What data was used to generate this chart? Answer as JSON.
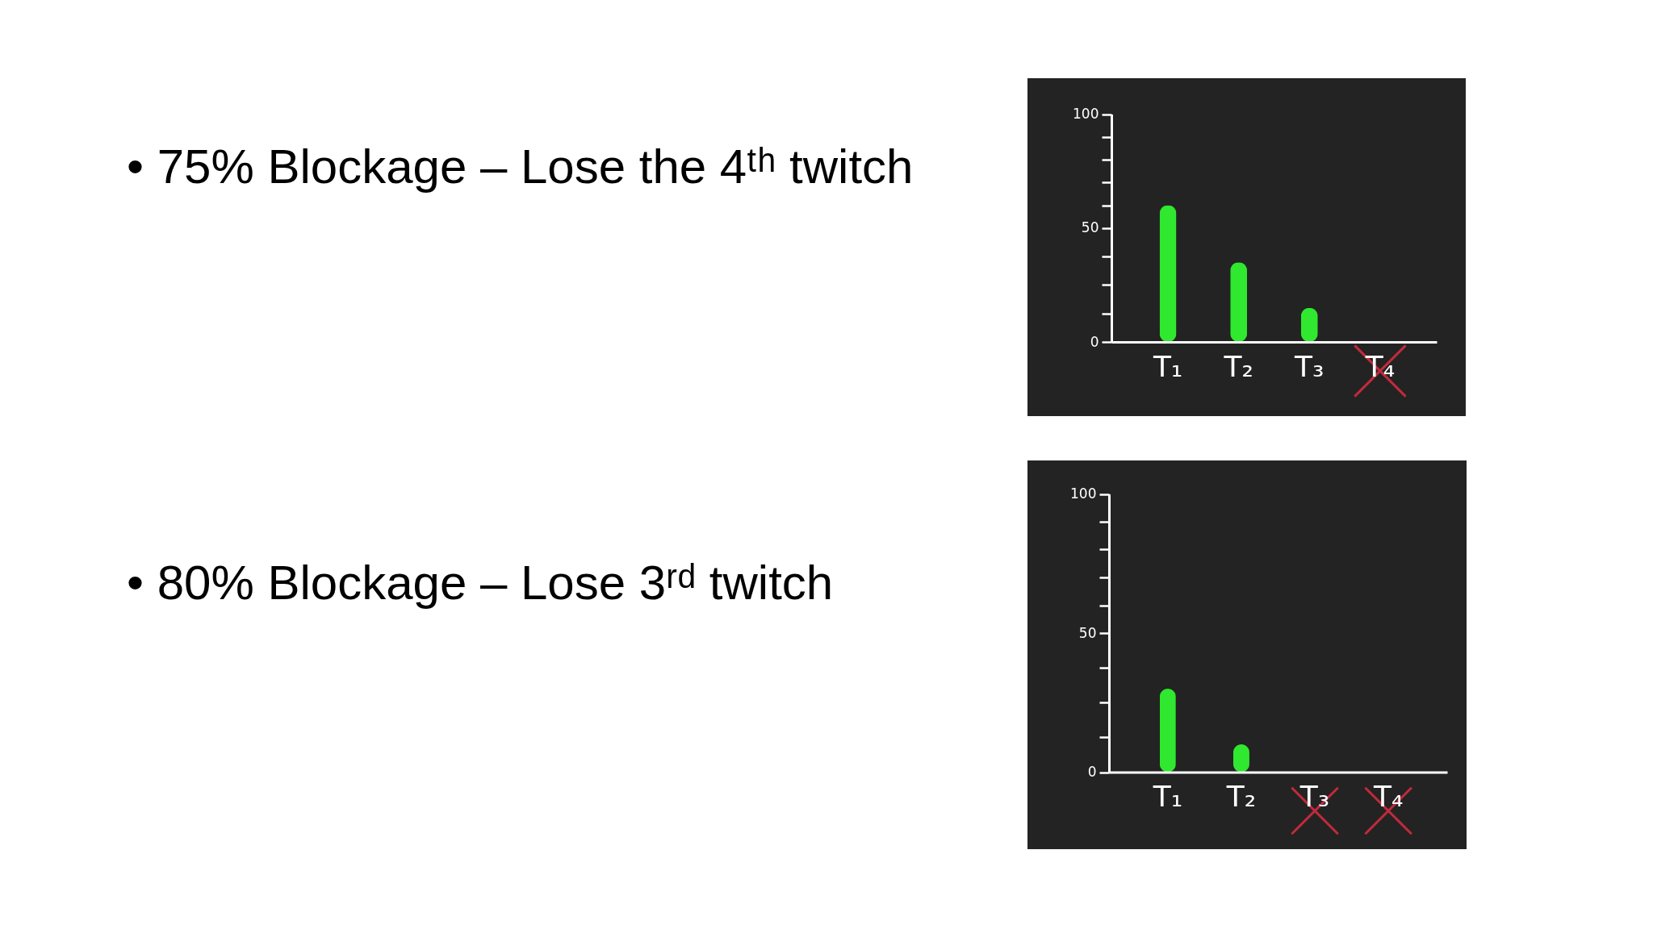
{
  "chart_data": [
    {
      "type": "bar",
      "title": "• 75% Blockage – Lose the 4ᵗʰ twitch",
      "categories": [
        "T₁",
        "T₂",
        "T₃",
        "T₄"
      ],
      "values": [
        60,
        35,
        15,
        null
      ],
      "color": "#2fe82f",
      "ylim": [
        0,
        100
      ],
      "yticks": [
        0,
        {
          "value": 12.5,
          "label": null
        },
        {
          "value": 25,
          "label": null
        },
        {
          "value": 37.5,
          "label": null
        },
        50,
        {
          "value": 60,
          "label": null
        },
        {
          "value": 70,
          "label": null
        },
        {
          "value": 80,
          "label": null
        },
        {
          "value": 90,
          "label": null
        },
        100
      ]
    },
    {
      "type": "bar",
      "title": "• 80% Blockage – Lose 3ʳᵈ twitch",
      "categories": [
        "T₁",
        "T₂",
        "T₃",
        "T₄"
      ],
      "values": [
        30,
        10,
        null,
        null
      ],
      "color": "#2fe82f",
      "ylim": [
        0,
        100
      ],
      "yticks": [
        0,
        {
          "value": 12.5,
          "label": null
        },
        {
          "value": 25,
          "label": null
        },
        {
          "value": 37.5,
          "label": null
        },
        50,
        {
          "value": 60,
          "label": null
        },
        {
          "value": 70,
          "label": null
        },
        {
          "value": 80,
          "label": null
        },
        {
          "value": 90,
          "label": null
        },
        100
      ]
    }
  ]
}
